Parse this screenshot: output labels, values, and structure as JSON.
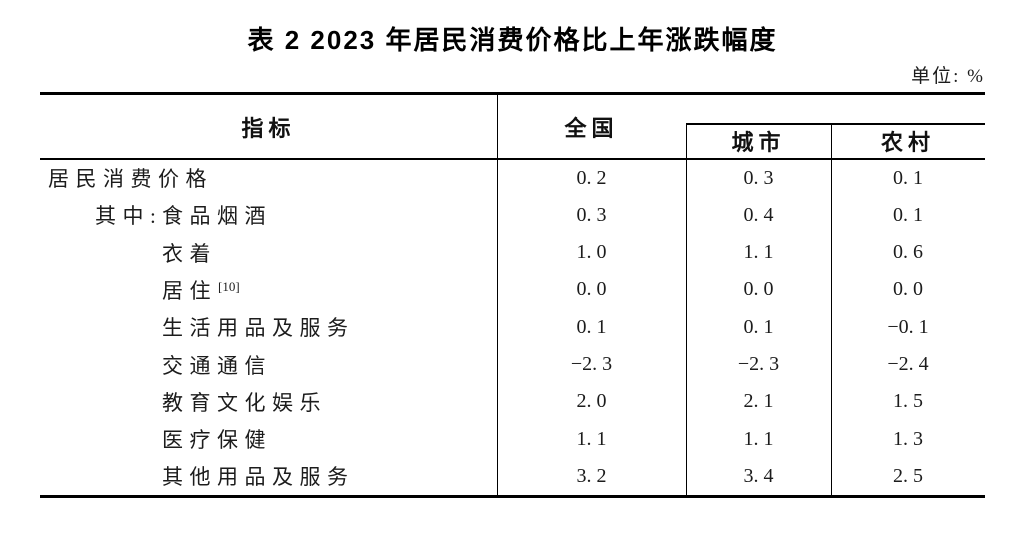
{
  "colors": {
    "background": "#ffffff",
    "border": "#000000",
    "text": "#1c1c1c"
  },
  "title": "表 2  2023 年居民消费价格比上年涨跌幅度",
  "unit_label": "单位: %",
  "table": {
    "header": {
      "indicator": "指标",
      "national": "全国",
      "urban": "城市",
      "rural": "农村"
    },
    "rows": [
      {
        "prefix": "",
        "label": "居民消费价格",
        "sup": "",
        "national": "0. 2",
        "urban": "0. 3",
        "rural": "0. 1"
      },
      {
        "prefix": "其中: ",
        "label": "食品烟酒",
        "sup": "",
        "national": "0. 3",
        "urban": "0. 4",
        "rural": "0. 1"
      },
      {
        "prefix": "",
        "label": "衣着",
        "sup": "",
        "national": "1. 0",
        "urban": "1. 1",
        "rural": "0. 6"
      },
      {
        "prefix": "",
        "label": "居住",
        "sup": "[10]",
        "national": "0. 0",
        "urban": "0. 0",
        "rural": "0. 0"
      },
      {
        "prefix": "",
        "label": "生活用品及服务",
        "sup": "",
        "national": "0. 1",
        "urban": "0. 1",
        "rural": "−0. 1"
      },
      {
        "prefix": "",
        "label": "交通通信",
        "sup": "",
        "national": "−2. 3",
        "urban": "−2. 3",
        "rural": "−2. 4"
      },
      {
        "prefix": "",
        "label": "教育文化娱乐",
        "sup": "",
        "national": "2. 0",
        "urban": "2. 1",
        "rural": "1. 5"
      },
      {
        "prefix": "",
        "label": "医疗保健",
        "sup": "",
        "national": "1. 1",
        "urban": "1. 1",
        "rural": "1. 3"
      },
      {
        "prefix": "",
        "label": "其他用品及服务",
        "sup": "",
        "national": "3. 2",
        "urban": "3. 4",
        "rural": "2. 5"
      }
    ]
  }
}
